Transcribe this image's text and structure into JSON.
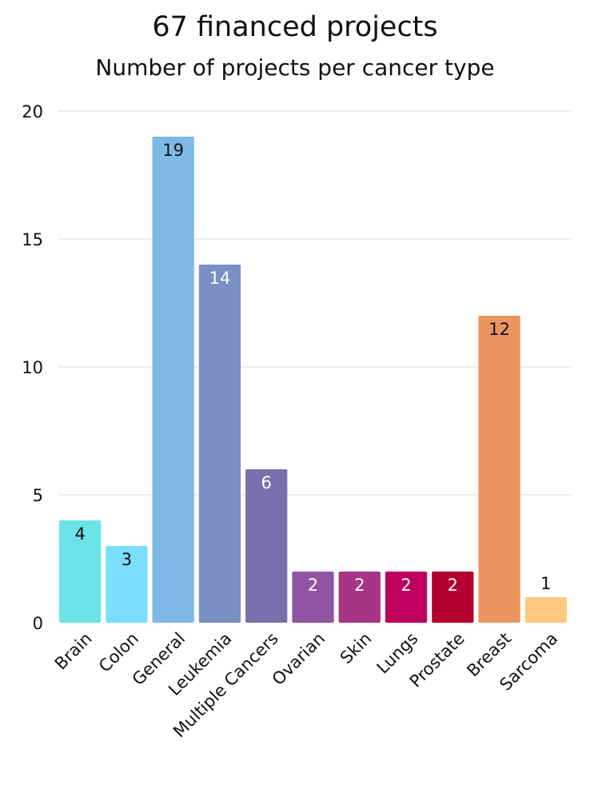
{
  "chart_data": {
    "type": "bar",
    "title": "67 financed projects",
    "subtitle": "Number of projects per cancer type",
    "xlabel": "",
    "ylabel": "",
    "ylim": [
      0,
      20
    ],
    "yticks": [
      0,
      5,
      10,
      15,
      20
    ],
    "grid": true,
    "categories": [
      "Brain",
      "Colon",
      "General",
      "Leukemia",
      "Multiple Cancers",
      "Ovarian",
      "Skin",
      "Lungs",
      "Prostate",
      "Breast",
      "Sarcoma"
    ],
    "values": [
      4,
      3,
      19,
      14,
      6,
      2,
      2,
      2,
      2,
      12,
      1
    ],
    "colors": [
      "#6ae4e6",
      "#79dffc",
      "#7fb9e6",
      "#7b90c2",
      "#7a6fac",
      "#8f55a3",
      "#a83486",
      "#c0005f",
      "#b3002f",
      "#ec9460",
      "#fec97f"
    ],
    "label_colors": [
      "#111111",
      "#111111",
      "#111111",
      "#ffffff",
      "#ffffff",
      "#ffffff",
      "#ffffff",
      "#ffffff",
      "#ffffff",
      "#111111",
      "#111111"
    ]
  }
}
